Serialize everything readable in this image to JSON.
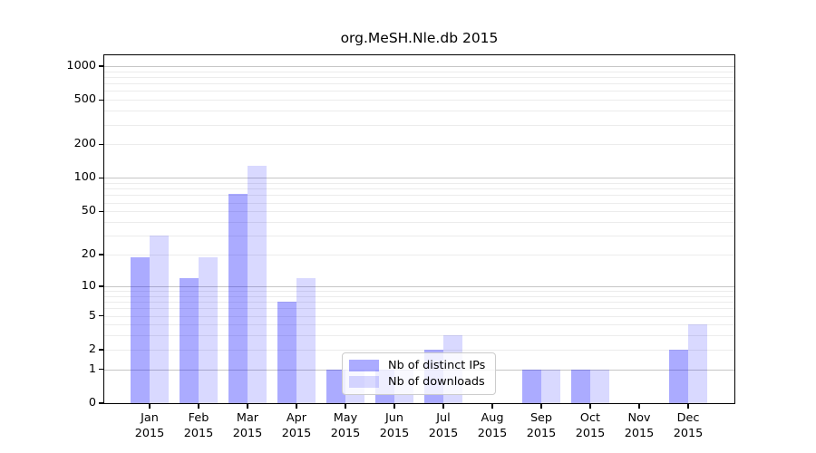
{
  "chart_data": {
    "type": "bar",
    "title": "org.MeSH.Nle.db 2015",
    "categories": [
      "Jan",
      "Feb",
      "Mar",
      "Apr",
      "May",
      "Jun",
      "Jul",
      "Aug",
      "Sep",
      "Oct",
      "Nov",
      "Dec"
    ],
    "x_year_label": "2015",
    "series": [
      {
        "name": "Nb of distinct IPs",
        "color": "#0000ff",
        "alpha": 0.33,
        "values": [
          19,
          12,
          72,
          7,
          1,
          1,
          2,
          0,
          1,
          1,
          0,
          2
        ]
      },
      {
        "name": "Nb of downloads",
        "color": "#0000ff",
        "alpha": 0.15,
        "values": [
          30,
          19,
          130,
          12,
          1,
          1,
          3,
          0,
          1,
          1,
          0,
          4
        ]
      }
    ],
    "yticks": [
      0,
      1,
      2,
      5,
      10,
      20,
      50,
      100,
      200,
      500,
      1000
    ],
    "ylim": [
      0,
      1000
    ],
    "yscale": "log1p",
    "grid": "on",
    "legend_position": "lower-center",
    "colors": {
      "bar_strong": "#aaaaf5",
      "bar_light": "#d9d9f8",
      "major_grid": "#c6c6c6",
      "minor_grid": "#ececec",
      "spine": "#000000",
      "text": "#000000"
    }
  }
}
